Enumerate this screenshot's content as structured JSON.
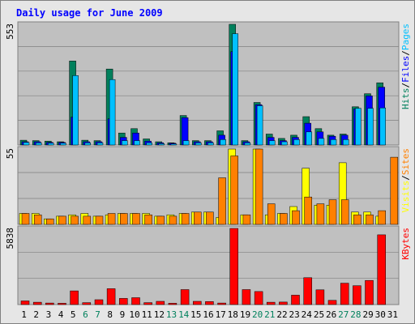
{
  "chart_data": {
    "type": "bar",
    "title": "Daily usage for June 2009",
    "categories": [
      "1",
      "2",
      "3",
      "4",
      "5",
      "6",
      "7",
      "8",
      "9",
      "10",
      "11",
      "12",
      "13",
      "14",
      "15",
      "16",
      "17",
      "18",
      "19",
      "20",
      "21",
      "22",
      "23",
      "24",
      "25",
      "26",
      "27",
      "28",
      "29",
      "30",
      "31"
    ],
    "weekend_days": [
      "6",
      "7",
      "13",
      "14",
      "20",
      "21",
      "27",
      "28"
    ],
    "colors": {
      "hits": "#00805c",
      "files": "#0000ff",
      "pages": "#00c0ff",
      "visits": "#ffff00",
      "sites": "#ff8000",
      "kbytes": "#ff0000",
      "title": "#0000ff",
      "weekend_label": "#00805c",
      "plot_bg": "#c0c0c0",
      "frame": "#808080"
    },
    "panels": [
      {
        "id": "hits",
        "ymax_label": "553",
        "ymax": 553,
        "legend": [
          {
            "label": "Hits",
            "color": "#00805c"
          },
          {
            "label": "/",
            "color": "#000000"
          },
          {
            "label": "Files",
            "color": "#0000ff"
          },
          {
            "label": "/",
            "color": "#000000"
          },
          {
            "label": "Pages",
            "color": "#00c0ff"
          }
        ],
        "series": [
          {
            "name": "Hits",
            "values": [
              22,
              20,
              18,
              15,
              385,
              22,
              20,
              348,
              55,
              75,
              28,
              15,
              10,
              135,
              20,
              20,
              65,
              553,
              20,
              195,
              50,
              30,
              45,
              130,
              75,
              45,
              50,
              175,
              235,
              285,
              0
            ]
          },
          {
            "name": "Files",
            "values": [
              15,
              15,
              12,
              12,
              128,
              15,
              15,
              120,
              35,
              55,
              18,
              10,
              8,
              125,
              15,
              15,
              45,
              428,
              15,
              185,
              35,
              20,
              35,
              100,
              60,
              40,
              45,
              165,
              225,
              265,
              0
            ]
          },
          {
            "name": "Pages",
            "values": [
              12,
              10,
              8,
              8,
              318,
              10,
              10,
              300,
              20,
              20,
              10,
              6,
              5,
              20,
              10,
              10,
              25,
              510,
              10,
              180,
              20,
              15,
              25,
              60,
              30,
              25,
              25,
              168,
              168,
              170,
              0
            ]
          }
        ]
      },
      {
        "id": "visits",
        "ymax_label": "55",
        "ymax": 55,
        "legend": [
          {
            "label": "Visits",
            "color": "#ffff00"
          },
          {
            "label": "/",
            "color": "#000000"
          },
          {
            "label": "Sites",
            "color": "#ff8000"
          }
        ],
        "series": [
          {
            "name": "Visits",
            "values": [
              8,
              8,
              4,
              6,
              7,
              8,
              6,
              7,
              8,
              8,
              8,
              6,
              7,
              8,
              9,
              9,
              5,
              55,
              7,
              55,
              7,
              8,
              13,
              41,
              14,
              14,
              45,
              9,
              9,
              6,
              0
            ]
          },
          {
            "name": "Sites",
            "values": [
              8,
              7,
              4,
              6,
              6,
              6,
              6,
              8,
              8,
              8,
              7,
              6,
              6,
              8,
              9,
              9,
              34,
              50,
              7,
              55,
              15,
              8,
              10,
              20,
              15,
              18,
              18,
              7,
              7,
              10,
              49
            ]
          }
        ]
      },
      {
        "id": "kbytes",
        "ymax_label": "5838",
        "ymax": 5838,
        "legend": [
          {
            "label": "KBytes",
            "color": "#ff0000"
          }
        ],
        "series": [
          {
            "name": "KBytes",
            "values": [
              280,
              180,
              120,
              100,
              1050,
              150,
              370,
              1220,
              470,
              530,
              150,
              250,
              100,
              1150,
              250,
              230,
              120,
              5838,
              1150,
              1000,
              180,
              190,
              720,
              2060,
              1130,
              320,
              1640,
              1450,
              1850,
              5350,
              0
            ]
          }
        ]
      }
    ]
  }
}
